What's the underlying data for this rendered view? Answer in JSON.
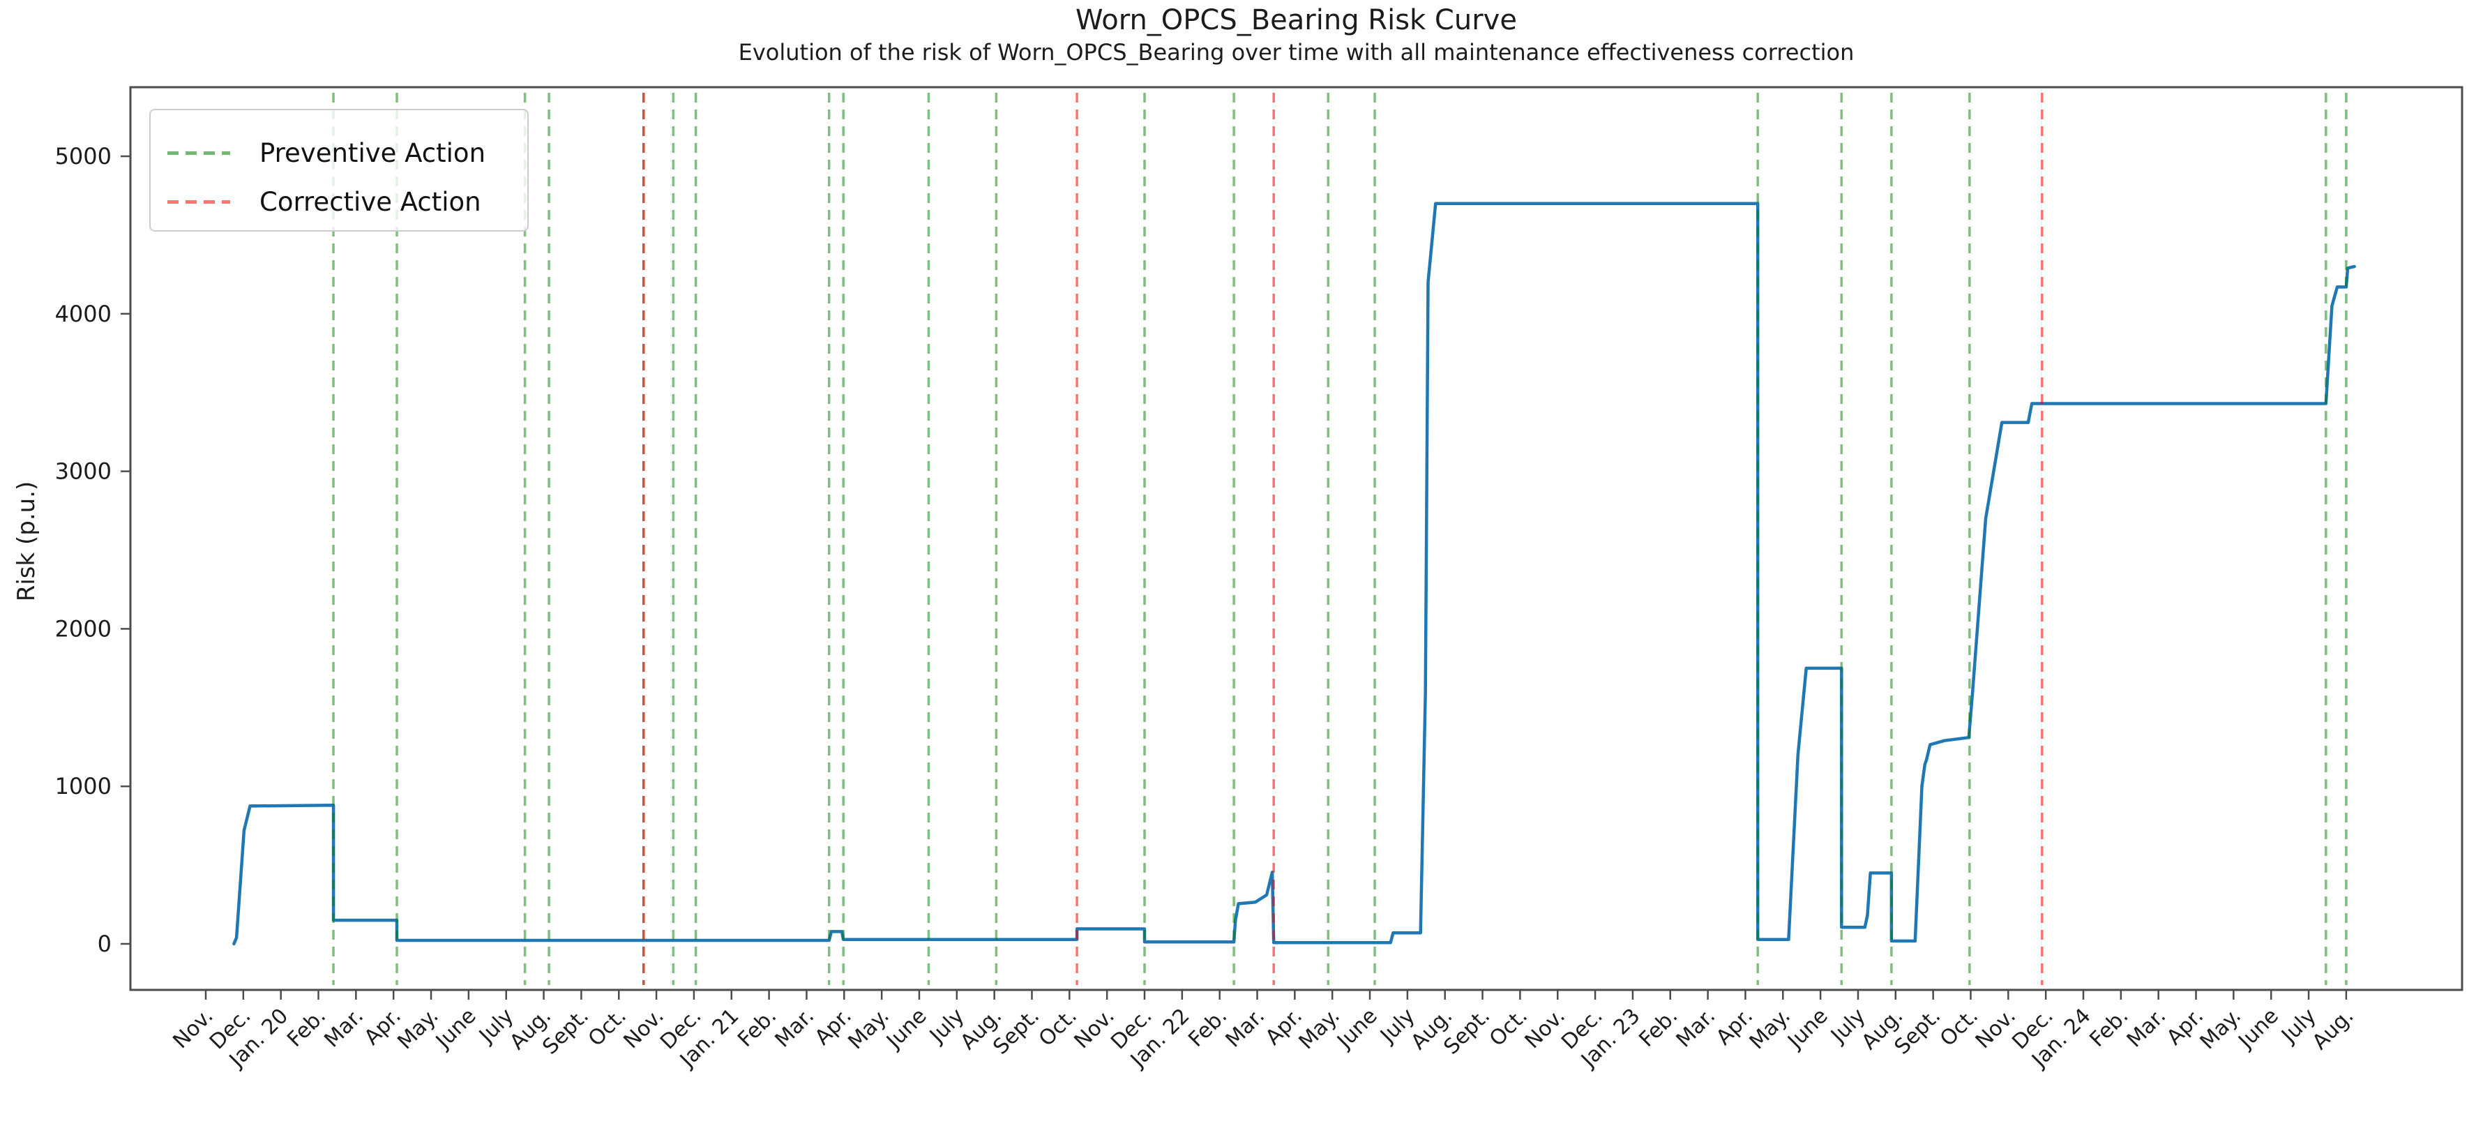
{
  "title": "Worn_OPCS_Bearing Risk Curve",
  "subtitle": "Evolution of the risk of Worn_OPCS_Bearing over time with all maintenance effectiveness correction",
  "legend": {
    "preventive_label": "Preventive Action",
    "corrective_label": "Corrective Action"
  },
  "colors": {
    "curve": "#1f77b4",
    "preventive_line": "rgba(0,128,0,0.5)",
    "corrective_line": "rgba(255,0,0,0.55)",
    "axis": "#4c4c4c",
    "tick_text": "#1c1c1c"
  },
  "chart_data": {
    "type": "line",
    "title": "Worn_OPCS_Bearing Risk Curve",
    "subtitle": "Evolution of the risk of Worn_OPCS_Bearing over time with all maintenance effectiveness correction",
    "xlabel": "",
    "ylabel": "Risk (p.u.)",
    "legend_position": "upper left",
    "legend_entries": [
      "Preventive Action",
      "Corrective Action"
    ],
    "grid": false,
    "y_ticks": [
      0,
      1000,
      2000,
      3000,
      4000,
      5000
    ],
    "ylim_drawn": [
      -290,
      5440
    ],
    "x_tick_labels": [
      "Nov.",
      "Dec.",
      "Jan. 20",
      "Feb.",
      "Mar.",
      "Apr.",
      "May.",
      "June",
      "July",
      "Aug.",
      "Sept.",
      "Oct.",
      "Nov.",
      "Dec.",
      "Jan. 21",
      "Feb.",
      "Mar.",
      "Apr.",
      "May.",
      "June",
      "July",
      "Aug.",
      "Sept.",
      "Oct.",
      "Nov.",
      "Dec.",
      "Jan. 22",
      "Feb.",
      "Mar.",
      "Apr.",
      "May.",
      "June",
      "July",
      "Aug.",
      "Sept.",
      "Oct.",
      "Nov.",
      "Dec.",
      "Jan. 23",
      "Feb.",
      "Mar.",
      "Apr.",
      "May.",
      "June",
      "July",
      "Aug.",
      "Sept.",
      "Oct.",
      "Nov.",
      "Dec.",
      "Jan. 24",
      "Feb.",
      "Mar.",
      "Apr.",
      "May.",
      "June",
      "July",
      "Aug."
    ],
    "x_axis_note": "month_index 0 = Nov. 2019 tick, 57 = Aug. 2024 tick",
    "series": [
      {
        "name": "Risk",
        "color": "#1f77b4",
        "points": [
          [
            0.75,
            0
          ],
          [
            0.82,
            40
          ],
          [
            1.02,
            720
          ],
          [
            1.18,
            875
          ],
          [
            3.4,
            880
          ],
          [
            3.4,
            150
          ],
          [
            5.09,
            150
          ],
          [
            5.09,
            22
          ],
          [
            16.6,
            22
          ],
          [
            16.66,
            78
          ],
          [
            16.94,
            78
          ],
          [
            16.98,
            28
          ],
          [
            23.2,
            28
          ],
          [
            23.2,
            95
          ],
          [
            25.0,
            95
          ],
          [
            25.0,
            12
          ],
          [
            27.38,
            12
          ],
          [
            27.42,
            150
          ],
          [
            27.5,
            255
          ],
          [
            27.95,
            265
          ],
          [
            28.25,
            310
          ],
          [
            28.4,
            455
          ],
          [
            28.44,
            8
          ],
          [
            31.55,
            8
          ],
          [
            31.62,
            70
          ],
          [
            32.35,
            70
          ],
          [
            32.48,
            1600
          ],
          [
            32.55,
            4200
          ],
          [
            32.75,
            4700
          ],
          [
            41.33,
            4700
          ],
          [
            41.33,
            28
          ],
          [
            42.15,
            28
          ],
          [
            42.4,
            1200
          ],
          [
            42.62,
            1750
          ],
          [
            43.56,
            1750
          ],
          [
            43.56,
            105
          ],
          [
            44.18,
            105
          ],
          [
            44.25,
            180
          ],
          [
            44.33,
            450
          ],
          [
            44.89,
            450
          ],
          [
            44.89,
            18
          ],
          [
            45.52,
            18
          ],
          [
            45.7,
            1000
          ],
          [
            45.78,
            1140
          ],
          [
            45.82,
            1165
          ],
          [
            45.92,
            1265
          ],
          [
            46.3,
            1290
          ],
          [
            46.95,
            1310
          ],
          [
            47.05,
            1600
          ],
          [
            47.4,
            2700
          ],
          [
            47.83,
            3310
          ],
          [
            48.53,
            3310
          ],
          [
            48.63,
            3430
          ],
          [
            56.46,
            3430
          ],
          [
            56.62,
            4050
          ],
          [
            56.76,
            4170
          ],
          [
            57.0,
            4170
          ],
          [
            57.04,
            4290
          ],
          [
            57.22,
            4300
          ]
        ]
      }
    ],
    "events": {
      "preventive_action": {
        "label": "Preventive Action",
        "style": "green dashed vertical line",
        "month_indices": [
          3.4,
          5.09,
          8.5,
          9.14,
          11.66,
          12.45,
          13.05,
          16.6,
          16.98,
          19.25,
          21.05,
          25.0,
          27.38,
          29.89,
          31.13,
          41.33,
          43.56,
          44.89,
          46.97,
          56.46,
          57.0
        ]
      },
      "corrective_action": {
        "label": "Corrective Action",
        "style": "red dashed vertical line",
        "month_indices": [
          11.66,
          23.2,
          28.44,
          48.9
        ]
      }
    }
  }
}
